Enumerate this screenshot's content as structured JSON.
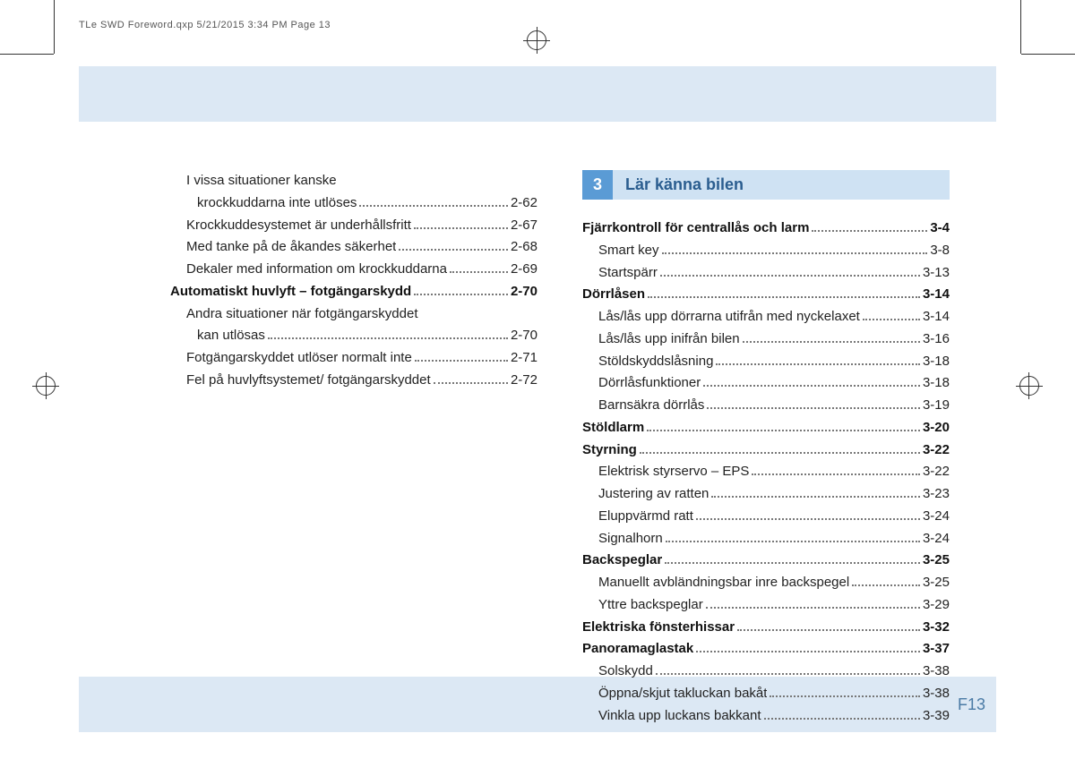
{
  "slug": "TLe SWD Foreword.qxp   5/21/2015   3:34 PM   Page 13",
  "page_number": "F13",
  "colors": {
    "band": "#dce8f4",
    "chapter_num_bg": "#5a9bd5",
    "chapter_title_bg": "#cfe2f3",
    "chapter_title_fg": "#2a5d8f",
    "page_num": "#4a7aa5"
  },
  "chapter": {
    "num": "3",
    "title": "Lär känna bilen"
  },
  "left": [
    {
      "text": "I vissa situationer kanske",
      "sub": true,
      "wrap": true
    },
    {
      "text": "krockkuddarna inte utlöses",
      "sub2": true,
      "page": "2-62"
    },
    {
      "text": "Krockkuddesystemet är underhållsfritt",
      "sub": true,
      "page": "2-67"
    },
    {
      "text": "Med tanke på de åkandes säkerhet",
      "sub": true,
      "page": "2-68"
    },
    {
      "text": "Dekaler med information om krockkuddarna",
      "sub": true,
      "page": "2-69"
    },
    {
      "text": "Automatiskt huvlyft – fotgängarskydd",
      "bold": true,
      "page": "2-70"
    },
    {
      "text": "Andra situationer när fotgängarskyddet",
      "sub": true,
      "wrap": true
    },
    {
      "text": "kan utlösas",
      "sub2": true,
      "page": "2-70"
    },
    {
      "text": "Fotgängarskyddet utlöser normalt inte",
      "sub": true,
      "page": "2-71"
    },
    {
      "text": "Fel på huvlyftsystemet/ fotgängarskyddet",
      "sub": true,
      "page": "2-72"
    }
  ],
  "right": [
    {
      "text": "Fjärrkontroll för centrallås och larm",
      "bold": true,
      "page": "3-4"
    },
    {
      "text": "Smart key",
      "sub": true,
      "page": "3-8"
    },
    {
      "text": "Startspärr",
      "sub": true,
      "page": "3-13"
    },
    {
      "text": "Dörrlåsen",
      "bold": true,
      "page": "3-14"
    },
    {
      "text": "Lås/lås upp dörrarna utifrån med nyckelaxet",
      "sub": true,
      "page": "3-14"
    },
    {
      "text": "Lås/lås upp inifrån bilen",
      "sub": true,
      "page": "3-16"
    },
    {
      "text": "Stöldskyddslåsning",
      "sub": true,
      "page": "3-18"
    },
    {
      "text": "Dörrlåsfunktioner",
      "sub": true,
      "page": "3-18"
    },
    {
      "text": "Barnsäkra dörrlås",
      "sub": true,
      "page": "3-19"
    },
    {
      "text": "Stöldlarm",
      "bold": true,
      "page": "3-20"
    },
    {
      "text": "Styrning",
      "bold": true,
      "page": "3-22"
    },
    {
      "text": "Elektrisk styrservo – EPS",
      "sub": true,
      "page": "3-22"
    },
    {
      "text": "Justering av ratten",
      "sub": true,
      "page": "3-23"
    },
    {
      "text": "Eluppvärmd ratt",
      "sub": true,
      "page": "3-24"
    },
    {
      "text": "Signalhorn",
      "sub": true,
      "page": "3-24"
    },
    {
      "text": "Backspeglar",
      "bold": true,
      "page": "3-25"
    },
    {
      "text": "Manuellt avbländningsbar inre backspegel",
      "sub": true,
      "page": "3-25"
    },
    {
      "text": "Yttre backspeglar",
      "sub": true,
      "page": "3-29"
    },
    {
      "text": "Elektriska fönsterhissar",
      "bold": true,
      "page": "3-32"
    },
    {
      "text": "Panoramaglastak",
      "bold": true,
      "page": "3-37"
    },
    {
      "text": "Solskydd",
      "sub": true,
      "page": "3-38"
    },
    {
      "text": "Öppna/skjut takluckan bakåt",
      "sub": true,
      "page": "3-38"
    },
    {
      "text": "Vinkla upp luckans bakkant",
      "sub": true,
      "page": "3-39"
    }
  ]
}
